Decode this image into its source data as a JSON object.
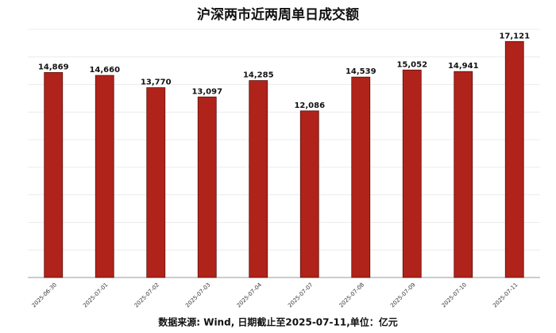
{
  "chart_data": {
    "type": "bar",
    "title": "沪深两市近两周单日成交额",
    "categories": [
      "2025-06-30",
      "2025-07-01",
      "2025-07-02",
      "2025-07-03",
      "2025-07-04",
      "2025-07-07",
      "2025-07-08",
      "2025-07-09",
      "2025-07-10",
      "2025-07-11"
    ],
    "values": [
      14869,
      14660,
      13770,
      13097,
      14285,
      12086,
      14539,
      15052,
      14941,
      17121
    ],
    "value_labels": [
      "14,869",
      "14,660",
      "13,770",
      "13,097",
      "14,285",
      "12,086",
      "14,539",
      "15,052",
      "14,941",
      "17,121"
    ],
    "color": "#b0231a",
    "ylim": [
      0,
      18000
    ],
    "yticks": [
      0,
      2000,
      4000,
      6000,
      8000,
      10000,
      12000,
      14000,
      16000,
      18000
    ],
    "grid": true,
    "source": "数据来源: Wind, 日期截止至2025-07-11,单位：亿元"
  }
}
